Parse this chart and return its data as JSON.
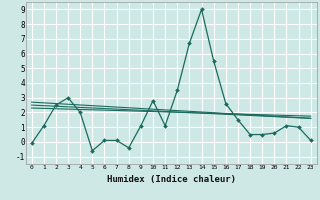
{
  "xlabel": "Humidex (Indice chaleur)",
  "ylabel": "",
  "xlim": [
    -0.5,
    23.5
  ],
  "ylim": [
    -1.5,
    9.5
  ],
  "yticks": [
    -1,
    0,
    1,
    2,
    3,
    4,
    5,
    6,
    7,
    8,
    9
  ],
  "xticks": [
    0,
    1,
    2,
    3,
    4,
    5,
    6,
    7,
    8,
    9,
    10,
    11,
    12,
    13,
    14,
    15,
    16,
    17,
    18,
    19,
    20,
    21,
    22,
    23
  ],
  "bg_color": "#cde8e5",
  "grid_color": "#ffffff",
  "line_color": "#1a6b5e",
  "main_x": [
    0,
    1,
    2,
    3,
    4,
    5,
    6,
    7,
    8,
    9,
    10,
    11,
    12,
    13,
    14,
    15,
    16,
    17,
    18,
    19,
    20,
    21,
    22,
    23
  ],
  "main_y": [
    -0.1,
    1.1,
    2.5,
    3.0,
    2.0,
    -0.6,
    0.1,
    0.1,
    -0.4,
    1.1,
    2.8,
    1.1,
    3.5,
    6.7,
    9.0,
    5.5,
    2.6,
    1.5,
    0.5,
    0.5,
    0.6,
    1.1,
    1.0,
    0.1
  ],
  "trend1_x": [
    0,
    23
  ],
  "trend1_y": [
    2.7,
    1.6
  ],
  "trend2_x": [
    0,
    23
  ],
  "trend2_y": [
    2.3,
    1.75
  ],
  "trend3_x": [
    0,
    23
  ],
  "trend3_y": [
    2.5,
    1.6
  ]
}
